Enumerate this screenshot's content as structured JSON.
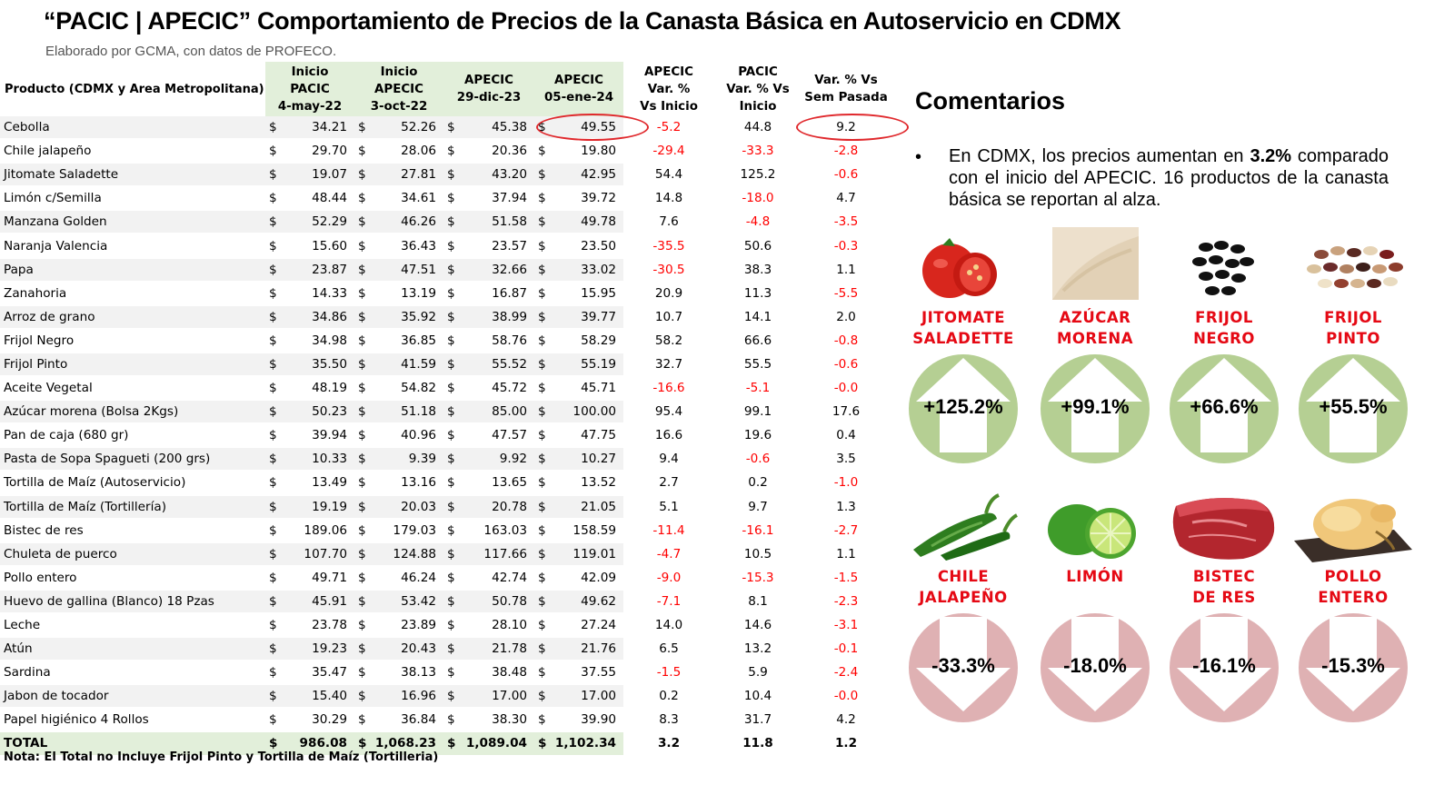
{
  "title": "“PACIC | APECIC” Comportamiento de Precios de la Canasta Básica en Autoservicio en CDMX",
  "subtitle": "Elaborado por GCMA, con datos de PROFECO.",
  "table": {
    "headers": {
      "product": "Producto (CDMX y Area Metropolitana)",
      "pacic_start": "Inicio\nPACIC\n4-may-22",
      "apecic_start": "Inicio\nAPECIC\n3-oct-22",
      "apecic_dec": "APECIC\n29-dic-23",
      "apecic_jan": "APECIC\n05-ene-24",
      "var_apecic": "APECIC\nVar. %\nVs  Inicio",
      "var_pacic": "PACIC\nVar. % Vs\nInicio",
      "var_week": "Var. % Vs\nSem Pasada"
    },
    "currency_symbol": "$",
    "rows": [
      {
        "product": "Cebolla",
        "pacic_start": "34.21",
        "apecic_start": "52.26",
        "apecic_dec": "45.38",
        "apecic_jan": "49.55",
        "var_apecic": "-5.2",
        "var_pacic": "44.8",
        "var_week": "9.2"
      },
      {
        "product": "Chile jalapeño",
        "pacic_start": "29.70",
        "apecic_start": "28.06",
        "apecic_dec": "20.36",
        "apecic_jan": "19.80",
        "var_apecic": "-29.4",
        "var_pacic": "-33.3",
        "var_week": "-2.8"
      },
      {
        "product": "Jitomate Saladette",
        "pacic_start": "19.07",
        "apecic_start": "27.81",
        "apecic_dec": "43.20",
        "apecic_jan": "42.95",
        "var_apecic": "54.4",
        "var_pacic": "125.2",
        "var_week": "-0.6"
      },
      {
        "product": "Limón c/Semilla",
        "pacic_start": "48.44",
        "apecic_start": "34.61",
        "apecic_dec": "37.94",
        "apecic_jan": "39.72",
        "var_apecic": "14.8",
        "var_pacic": "-18.0",
        "var_week": "4.7"
      },
      {
        "product": "Manzana Golden",
        "pacic_start": "52.29",
        "apecic_start": "46.26",
        "apecic_dec": "51.58",
        "apecic_jan": "49.78",
        "var_apecic": "7.6",
        "var_pacic": "-4.8",
        "var_week": "-3.5"
      },
      {
        "product": "Naranja Valencia",
        "pacic_start": "15.60",
        "apecic_start": "36.43",
        "apecic_dec": "23.57",
        "apecic_jan": "23.50",
        "var_apecic": "-35.5",
        "var_pacic": "50.6",
        "var_week": "-0.3"
      },
      {
        "product": "Papa",
        "pacic_start": "23.87",
        "apecic_start": "47.51",
        "apecic_dec": "32.66",
        "apecic_jan": "33.02",
        "var_apecic": "-30.5",
        "var_pacic": "38.3",
        "var_week": "1.1"
      },
      {
        "product": "Zanahoria",
        "pacic_start": "14.33",
        "apecic_start": "13.19",
        "apecic_dec": "16.87",
        "apecic_jan": "15.95",
        "var_apecic": "20.9",
        "var_pacic": "11.3",
        "var_week": "-5.5"
      },
      {
        "product": "Arroz de grano",
        "pacic_start": "34.86",
        "apecic_start": "35.92",
        "apecic_dec": "38.99",
        "apecic_jan": "39.77",
        "var_apecic": "10.7",
        "var_pacic": "14.1",
        "var_week": "2.0"
      },
      {
        "product": "Frijol Negro",
        "pacic_start": "34.98",
        "apecic_start": "36.85",
        "apecic_dec": "58.76",
        "apecic_jan": "58.29",
        "var_apecic": "58.2",
        "var_pacic": "66.6",
        "var_week": "-0.8"
      },
      {
        "product": "Frijol Pinto",
        "pacic_start": "35.50",
        "apecic_start": "41.59",
        "apecic_dec": "55.52",
        "apecic_jan": "55.19",
        "var_apecic": "32.7",
        "var_pacic": "55.5",
        "var_week": "-0.6"
      },
      {
        "product": "Aceite Vegetal",
        "pacic_start": "48.19",
        "apecic_start": "54.82",
        "apecic_dec": "45.72",
        "apecic_jan": "45.71",
        "var_apecic": "-16.6",
        "var_pacic": "-5.1",
        "var_week": "-0.0"
      },
      {
        "product": "Azúcar morena (Bolsa 2Kgs)",
        "pacic_start": "50.23",
        "apecic_start": "51.18",
        "apecic_dec": "85.00",
        "apecic_jan": "100.00",
        "var_apecic": "95.4",
        "var_pacic": "99.1",
        "var_week": "17.6"
      },
      {
        "product": "Pan de caja (680 gr)",
        "pacic_start": "39.94",
        "apecic_start": "40.96",
        "apecic_dec": "47.57",
        "apecic_jan": "47.75",
        "var_apecic": "16.6",
        "var_pacic": "19.6",
        "var_week": "0.4"
      },
      {
        "product": "Pasta de Sopa Spagueti (200 grs)",
        "pacic_start": "10.33",
        "apecic_start": "9.39",
        "apecic_dec": "9.92",
        "apecic_jan": "10.27",
        "var_apecic": "9.4",
        "var_pacic": "-0.6",
        "var_week": "3.5"
      },
      {
        "product": "Tortilla de Maíz (Autoservicio)",
        "pacic_start": "13.49",
        "apecic_start": "13.16",
        "apecic_dec": "13.65",
        "apecic_jan": "13.52",
        "var_apecic": "2.7",
        "var_pacic": "0.2",
        "var_week": "-1.0"
      },
      {
        "product": "Tortilla de Maíz (Tortillería)",
        "pacic_start": "19.19",
        "apecic_start": "20.03",
        "apecic_dec": "20.78",
        "apecic_jan": "21.05",
        "var_apecic": "5.1",
        "var_pacic": "9.7",
        "var_week": "1.3"
      },
      {
        "product": "Bistec de res",
        "pacic_start": "189.06",
        "apecic_start": "179.03",
        "apecic_dec": "163.03",
        "apecic_jan": "158.59",
        "var_apecic": "-11.4",
        "var_pacic": "-16.1",
        "var_week": "-2.7"
      },
      {
        "product": "Chuleta de puerco",
        "pacic_start": "107.70",
        "apecic_start": "124.88",
        "apecic_dec": "117.66",
        "apecic_jan": "119.01",
        "var_apecic": "-4.7",
        "var_pacic": "10.5",
        "var_week": "1.1"
      },
      {
        "product": "Pollo entero",
        "pacic_start": "49.71",
        "apecic_start": "46.24",
        "apecic_dec": "42.74",
        "apecic_jan": "42.09",
        "var_apecic": "-9.0",
        "var_pacic": "-15.3",
        "var_week": "-1.5"
      },
      {
        "product": "Huevo de gallina (Blanco) 18 Pzas",
        "pacic_start": "45.91",
        "apecic_start": "53.42",
        "apecic_dec": "50.78",
        "apecic_jan": "49.62",
        "var_apecic": "-7.1",
        "var_pacic": "8.1",
        "var_week": "-2.3"
      },
      {
        "product": "Leche",
        "pacic_start": "23.78",
        "apecic_start": "23.89",
        "apecic_dec": "28.10",
        "apecic_jan": "27.24",
        "var_apecic": "14.0",
        "var_pacic": "14.6",
        "var_week": "-3.1"
      },
      {
        "product": "Atún",
        "pacic_start": "19.23",
        "apecic_start": "20.43",
        "apecic_dec": "21.78",
        "apecic_jan": "21.76",
        "var_apecic": "6.5",
        "var_pacic": "13.2",
        "var_week": "-0.1"
      },
      {
        "product": "Sardina",
        "pacic_start": "35.47",
        "apecic_start": "38.13",
        "apecic_dec": "38.48",
        "apecic_jan": "37.55",
        "var_apecic": "-1.5",
        "var_pacic": "5.9",
        "var_week": "-2.4"
      },
      {
        "product": "Jabon de tocador",
        "pacic_start": "15.40",
        "apecic_start": "16.96",
        "apecic_dec": "17.00",
        "apecic_jan": "17.00",
        "var_apecic": "0.2",
        "var_pacic": "10.4",
        "var_week": "-0.0"
      },
      {
        "product": "Papel higiénico 4 Rollos",
        "pacic_start": "30.29",
        "apecic_start": "36.84",
        "apecic_dec": "38.30",
        "apecic_jan": "39.90",
        "var_apecic": "8.3",
        "var_pacic": "31.7",
        "var_week": "4.2"
      }
    ],
    "total": {
      "product": "TOTAL",
      "pacic_start": "986.08",
      "apecic_start": "1,068.23",
      "apecic_dec": "1,089.04",
      "apecic_jan": "1,102.34",
      "var_apecic": "3.2",
      "var_pacic": "11.8",
      "var_week": "1.2"
    }
  },
  "note": "Nota: El Total no Incluye Frijol Pinto y Tortilla de Maíz (Tortilleria)",
  "comments": {
    "title": "Comentarios",
    "bullet": "•",
    "text_before": "En CDMX, los precios aumentan en ",
    "highlight": "3.2%",
    "text_after": " comparado con el inicio del APECIC. 16 productos de la canasta básica se reportan al alza."
  },
  "increases": [
    {
      "name": "JITOMATE\nSALADETTE",
      "value": "+125.2%",
      "image": "tomato-image"
    },
    {
      "name": "AZÚCAR\nMORENA",
      "value": "+99.1%",
      "image": "brown-sugar-image"
    },
    {
      "name": "FRIJOL\nNEGRO",
      "value": "+66.6%",
      "image": "black-beans-image"
    },
    {
      "name": "FRIJOL\nPINTO",
      "value": "+55.5%",
      "image": "pinto-beans-image"
    }
  ],
  "decreases": [
    {
      "name": "CHILE\nJALAPEÑO",
      "value": "-33.3%",
      "image": "jalapeno-image"
    },
    {
      "name": "LIMÓN",
      "value": "-18.0%",
      "image": "lime-image"
    },
    {
      "name": "BISTEC\nDE RES",
      "value": "-16.1%",
      "image": "beef-steak-image"
    },
    {
      "name": "POLLO\nENTERO",
      "value": "-15.3%",
      "image": "whole-chicken-image"
    }
  ],
  "colors": {
    "header_green": "#e2efda",
    "row_gray": "#f2f2f2",
    "negative_red": "#ff0000",
    "product_label_red": "#e50914",
    "up_circle_green": "#b5cf93",
    "down_circle_pink": "#dfb1b3",
    "highlight_oval": "#e0282c"
  }
}
